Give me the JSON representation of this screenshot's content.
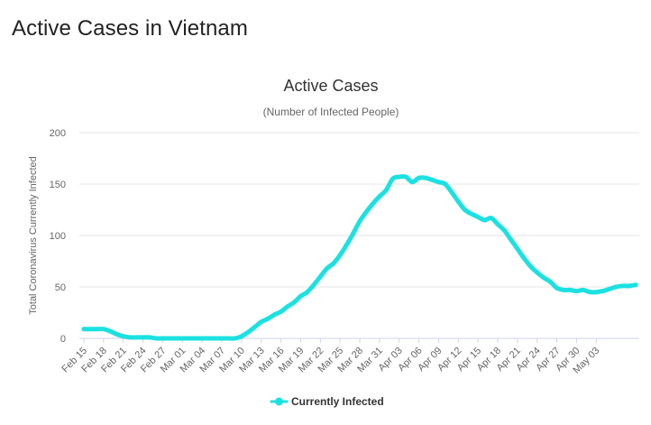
{
  "page": {
    "heading": "Active Cases in Vietnam"
  },
  "colors": {
    "series": "#1ce1e1",
    "grid": "#e6e6e6",
    "axis": "#ccd6eb"
  },
  "chart_data": {
    "type": "line",
    "title": "Active Cases",
    "subtitle": "(Number of Infected People)",
    "xlabel": "",
    "ylabel": "Total Coronavirus Currently Infected",
    "ylim": [
      0,
      200
    ],
    "yticks": [
      "0",
      "50",
      "100",
      "150",
      "200"
    ],
    "xtick_labels": [
      "Feb 15",
      "Feb 18",
      "Feb 21",
      "Feb 24",
      "Feb 27",
      "Mar 01",
      "Mar 04",
      "Mar 07",
      "Mar 10",
      "Mar 13",
      "Mar 16",
      "Mar 19",
      "Mar 22",
      "Mar 25",
      "Mar 28",
      "Mar 31",
      "Apr 03",
      "Apr 06",
      "Apr 09",
      "Apr 12",
      "Apr 15",
      "Apr 18",
      "Apr 21",
      "Apr 24",
      "Apr 27",
      "Apr 30",
      "May 03"
    ],
    "legend": "bottom-center",
    "series": [
      {
        "name": "Currently Infected",
        "values": [
          9,
          9,
          9,
          9,
          7,
          4,
          2,
          1,
          1,
          1,
          1,
          0,
          0,
          0,
          0,
          0,
          0,
          0,
          0,
          0,
          0,
          0,
          0,
          0,
          2,
          6,
          11,
          16,
          19,
          23,
          26,
          31,
          35,
          41,
          45,
          52,
          60,
          68,
          73,
          81,
          91,
          102,
          114,
          123,
          131,
          138,
          144,
          155,
          157,
          157,
          152,
          156,
          156,
          154,
          152,
          150,
          142,
          133,
          125,
          121,
          118,
          115,
          117,
          111,
          105,
          96,
          87,
          78,
          70,
          64,
          59,
          55,
          49,
          47,
          47,
          46,
          47,
          45,
          45,
          46,
          48,
          50,
          51,
          51,
          52
        ]
      }
    ]
  }
}
